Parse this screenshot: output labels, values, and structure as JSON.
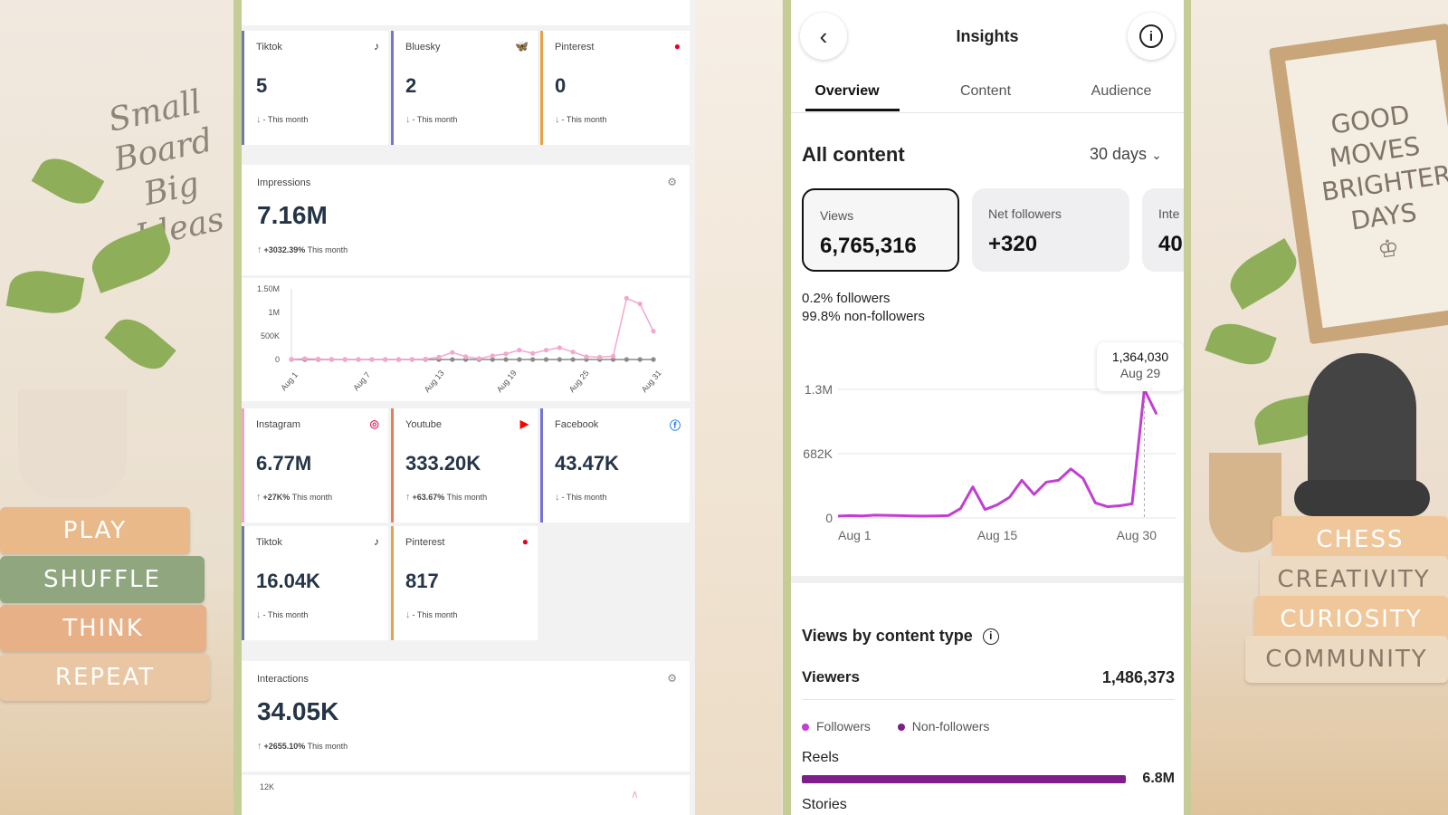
{
  "background": {
    "left_note": [
      "Small",
      "Board",
      "Big",
      "Ideas"
    ],
    "left_books": [
      "PLAY",
      "SHUFFLE",
      "THINK",
      "REPEAT"
    ],
    "right_frame": [
      "GOOD",
      "MOVES",
      "BRIGHTER",
      "DAYS"
    ],
    "right_books": [
      "CHESS",
      "CREATIVITY",
      "CURIOSITY",
      "COMMUNITY"
    ]
  },
  "dashboard": {
    "top_cards": [
      {
        "name": "Tiktok",
        "value": "5",
        "sub": "- This month",
        "icon": "tiktok-icon",
        "color": "#6c7ea8"
      },
      {
        "name": "Bluesky",
        "value": "2",
        "sub": "- This month",
        "icon": "bluesky-icon",
        "color": "#7672d6"
      },
      {
        "name": "Pinterest",
        "value": "0",
        "sub": "- This month",
        "icon": "pinterest-icon",
        "color": "#eaa24a"
      }
    ],
    "impressions": {
      "title": "Impressions",
      "value": "7.16M",
      "change": "+3032.39%",
      "period": "This month"
    },
    "impressions_chart": {
      "y_ticks": [
        "1.50M",
        "1M",
        "500K",
        "0"
      ],
      "x_ticks": [
        "Aug 1",
        "Aug 7",
        "Aug 13",
        "Aug 19",
        "Aug 25",
        "Aug 31"
      ]
    },
    "platform_cards": [
      {
        "name": "Instagram",
        "value": "6.77M",
        "change": "+27K%",
        "period": "This month",
        "icon": "instagram-icon",
        "color": "#f2a3c6"
      },
      {
        "name": "Youtube",
        "value": "333.20K",
        "change": "+63.67%",
        "period": "This month",
        "icon": "youtube-icon",
        "color": "#ee7a55"
      },
      {
        "name": "Facebook",
        "value": "43.47K",
        "change": "",
        "period": "- This month",
        "icon": "facebook-icon",
        "color": "#7672d6"
      },
      {
        "name": "Tiktok",
        "value": "16.04K",
        "change": "",
        "period": "- This month",
        "icon": "tiktok-icon",
        "color": "#6c7ea8"
      },
      {
        "name": "Pinterest",
        "value": "817",
        "change": "",
        "period": "- This month",
        "icon": "pinterest-icon",
        "color": "#eaa24a"
      }
    ],
    "interactions": {
      "title": "Interactions",
      "value": "34.05K",
      "change": "+2655.10%",
      "period": "This month"
    },
    "interactions_chart": {
      "y_tick": "12K"
    }
  },
  "insights": {
    "title": "Insights",
    "tabs": [
      "Overview",
      "Content",
      "Audience"
    ],
    "active_tab": "Overview",
    "section_title": "All content",
    "range": "30 days",
    "metrics": [
      {
        "label": "Views",
        "value": "6,765,316"
      },
      {
        "label": "Net followers",
        "value": "+320"
      },
      {
        "label": "Inte",
        "value": "40"
      }
    ],
    "followers_pct": "0.2% followers",
    "non_followers_pct": "99.8% non-followers",
    "tooltip": {
      "value": "1,364,030",
      "date": "Aug 29"
    },
    "views_by_type_title": "Views by content type",
    "viewers_label": "Viewers",
    "viewers_value": "1,486,373",
    "legend": [
      "Followers",
      "Non-followers"
    ],
    "reels_label": "Reels",
    "reels_value": "6.8M",
    "stories_label": "Stories",
    "accent": "#c13fd1",
    "accent_dark": "#7d1e8a"
  },
  "chart_data": [
    {
      "type": "line",
      "title": "Impressions",
      "y_ticks": [
        "1.50M",
        "1M",
        "500K",
        "0"
      ],
      "x_ticks": [
        "Aug 1",
        "Aug 7",
        "Aug 13",
        "Aug 19",
        "Aug 25",
        "Aug 31"
      ],
      "ylim": [
        0,
        1500000
      ],
      "series": [
        {
          "color": "#f3a6cf",
          "values": [
            5000,
            20000,
            10000,
            5000,
            3000,
            2000,
            1000,
            1000,
            3000,
            5000,
            10000,
            50000,
            150000,
            60000,
            20000,
            80000,
            120000,
            200000,
            130000,
            200000,
            250000,
            160000,
            60000,
            50000,
            70000,
            1300000,
            1180000,
            600000
          ]
        },
        {
          "color": "#8a8a8a",
          "values": [
            0,
            0,
            0,
            0,
            0,
            0,
            0,
            0,
            0,
            0,
            0,
            0,
            0,
            0,
            0,
            0,
            0,
            0,
            0,
            0,
            0,
            0,
            0,
            0,
            0,
            0,
            0,
            0
          ]
        }
      ]
    },
    {
      "type": "line",
      "title": "All content",
      "y_ticks": [
        "1.3M",
        "682K",
        "0"
      ],
      "x_ticks": [
        "Aug 1",
        "Aug 15",
        "Aug 30"
      ],
      "ylim": [
        0,
        1364030
      ],
      "series": [
        {
          "color": "#c13fd1",
          "values": [
            20000,
            25000,
            22000,
            30000,
            28000,
            25000,
            22000,
            20000,
            22000,
            25000,
            100000,
            330000,
            90000,
            140000,
            220000,
            400000,
            250000,
            380000,
            400000,
            520000,
            420000,
            160000,
            120000,
            130000,
            150000,
            1364030,
            1100000
          ]
        }
      ]
    }
  ]
}
